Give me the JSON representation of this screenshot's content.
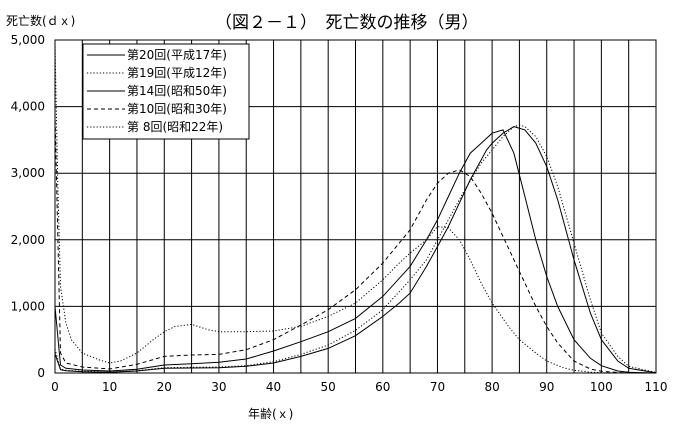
{
  "chart_data": {
    "type": "line",
    "title": "（図２－１）　死亡数の推移（男）",
    "ylabel": "死亡数(ｄｘ)",
    "xlabel": "年齢(ｘ)",
    "xlim": [
      0,
      110
    ],
    "ylim": [
      0,
      5000
    ],
    "x_ticks": [
      0,
      10,
      20,
      30,
      40,
      50,
      60,
      70,
      80,
      90,
      100,
      110
    ],
    "y_ticks": [
      0,
      1000,
      2000,
      3000,
      4000,
      5000
    ],
    "x_tick_labels": [
      "0",
      "10",
      "20",
      "30",
      "40",
      "50",
      "60",
      "70",
      "80",
      "90",
      "100",
      "110"
    ],
    "y_tick_labels": [
      "0",
      "1,000",
      "2,000",
      "3,000",
      "4,000",
      "5,000"
    ],
    "grid": true,
    "legend_position": "top-left",
    "series": [
      {
        "name": "第20回(平成17年)",
        "dash": "solid",
        "x": [
          0,
          1,
          2,
          5,
          10,
          15,
          20,
          25,
          30,
          35,
          40,
          45,
          50,
          55,
          60,
          63,
          65,
          68,
          70,
          72,
          74,
          76,
          78,
          79,
          80,
          82,
          84,
          86,
          88,
          90,
          92,
          95,
          98,
          100,
          103,
          105,
          110
        ],
        "y": [
          290,
          50,
          35,
          20,
          12,
          30,
          70,
          75,
          80,
          100,
          150,
          250,
          370,
          560,
          850,
          1050,
          1200,
          1600,
          1900,
          2200,
          2550,
          2900,
          3200,
          3350,
          3450,
          3600,
          3700,
          3650,
          3450,
          3100,
          2600,
          1700,
          900,
          500,
          180,
          70,
          5
        ]
      },
      {
        "name": "第19回(平成12年)",
        "dash": "dotted",
        "x": [
          0,
          1,
          2,
          5,
          10,
          15,
          20,
          25,
          30,
          35,
          40,
          45,
          50,
          55,
          60,
          65,
          68,
          70,
          73,
          75,
          78,
          80,
          82,
          84,
          85,
          86,
          88,
          90,
          92,
          95,
          98,
          100,
          103,
          105,
          110
        ],
        "y": [
          360,
          60,
          40,
          25,
          15,
          35,
          80,
          85,
          90,
          110,
          170,
          280,
          420,
          640,
          950,
          1400,
          1700,
          2000,
          2450,
          2750,
          3150,
          3350,
          3550,
          3700,
          3720,
          3700,
          3550,
          3250,
          2800,
          1950,
          1100,
          600,
          250,
          100,
          8
        ]
      },
      {
        "name": "第14回(昭和50年)",
        "dash": "solid",
        "x": [
          0,
          1,
          2,
          5,
          10,
          15,
          20,
          25,
          30,
          35,
          40,
          45,
          50,
          55,
          60,
          65,
          68,
          70,
          72,
          74,
          76,
          78,
          80,
          82,
          84,
          86,
          88,
          90,
          92,
          95,
          98,
          100,
          103,
          105,
          110
        ],
        "y": [
          1000,
          120,
          70,
          45,
          30,
          55,
          120,
          140,
          160,
          210,
          330,
          470,
          620,
          820,
          1150,
          1600,
          2000,
          2300,
          2650,
          3000,
          3300,
          3450,
          3600,
          3650,
          3300,
          2650,
          2000,
          1450,
          1000,
          500,
          220,
          110,
          30,
          10,
          1
        ]
      },
      {
        "name": "第10回(昭和30年)",
        "dash": "dashed",
        "x": [
          0,
          1,
          2,
          5,
          10,
          15,
          20,
          25,
          30,
          35,
          40,
          45,
          50,
          55,
          60,
          65,
          68,
          70,
          72,
          74,
          76,
          78,
          80,
          82,
          84,
          86,
          88,
          90,
          92,
          95,
          98,
          100,
          103,
          105,
          110
        ],
        "y": [
          3900,
          300,
          150,
          90,
          60,
          130,
          250,
          270,
          280,
          350,
          500,
          720,
          950,
          1250,
          1650,
          2150,
          2600,
          2850,
          3000,
          3050,
          2950,
          2700,
          2400,
          2050,
          1700,
          1350,
          1000,
          700,
          450,
          180,
          60,
          25,
          8,
          2,
          0
        ]
      },
      {
        "name": "第 8回(昭和22年)",
        "dash": "dotted",
        "x": [
          0,
          0.5,
          1,
          2,
          3,
          5,
          8,
          10,
          12,
          15,
          18,
          20,
          22,
          25,
          28,
          30,
          35,
          40,
          45,
          50,
          55,
          60,
          63,
          65,
          68,
          70,
          72,
          74,
          76,
          78,
          80,
          83,
          85,
          88,
          90,
          93,
          95,
          98,
          100,
          103,
          105,
          110
        ],
        "y": [
          4950,
          2900,
          1300,
          750,
          500,
          300,
          200,
          150,
          180,
          300,
          500,
          620,
          700,
          730,
          650,
          620,
          620,
          630,
          700,
          850,
          1050,
          1400,
          1650,
          1800,
          2000,
          2200,
          2180,
          2000,
          1700,
          1350,
          1050,
          700,
          500,
          300,
          180,
          80,
          40,
          12,
          5,
          1,
          0,
          0
        ]
      }
    ]
  }
}
